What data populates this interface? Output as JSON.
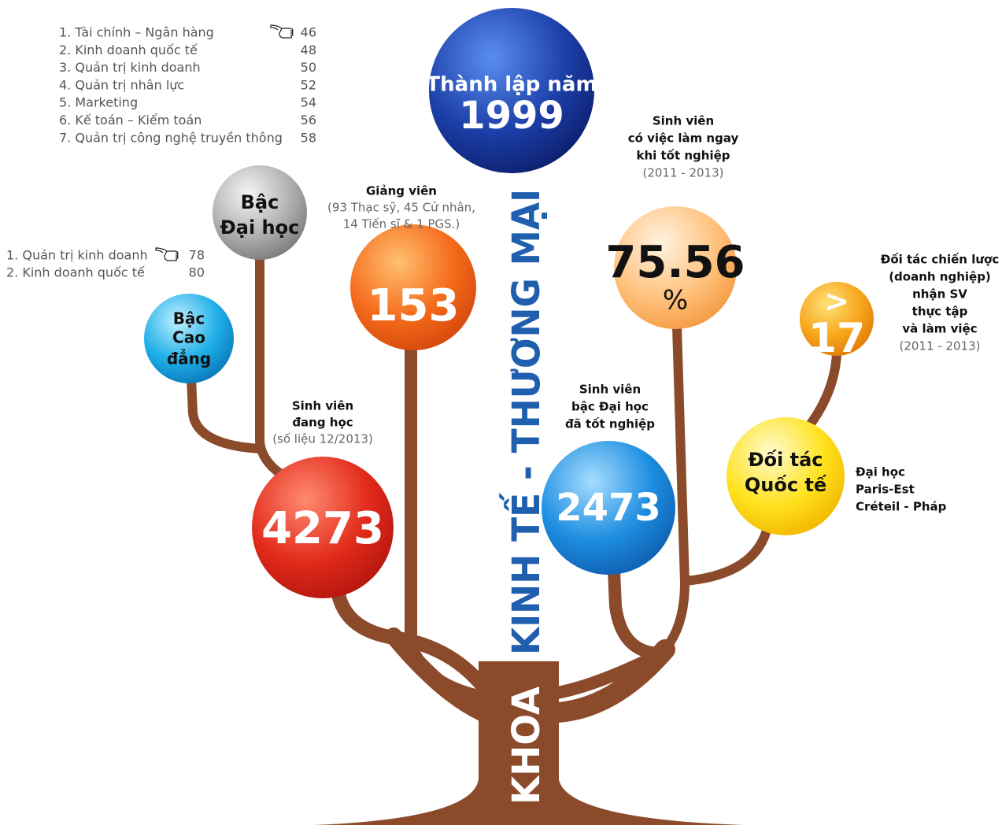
{
  "programs_main": [
    {
      "name": "1. Tài chính – Ngân hàng",
      "page": "46"
    },
    {
      "name": "2. Kinh doanh quốc tế",
      "page": "48"
    },
    {
      "name": "3. Quản trị kinh doanh",
      "page": "50"
    },
    {
      "name": "4. Quản trị nhân lực",
      "page": "52"
    },
    {
      "name": "5. Marketing",
      "page": "54"
    },
    {
      "name": "6. Kế toán – Kiểm toán",
      "page": "56"
    },
    {
      "name": "7. Quản trị công nghệ truyền thông",
      "page": "58"
    }
  ],
  "programs_college": [
    {
      "name": "1. Quản trị kinh doanh",
      "page": "78"
    },
    {
      "name": "2. Kinh doanh quốc tế",
      "page": "80"
    }
  ],
  "trunk": {
    "khoa": "KHOA",
    "name": "KINH TẾ - THƯƠNG MẠI"
  },
  "bubbles": [
    {
      "lines": [
        "Thành lập năm",
        "1999"
      ]
    },
    {
      "lines": [
        "Bậc",
        "Đại học"
      ]
    },
    {
      "lines": [
        "Bậc",
        "Cao",
        "đẳng"
      ]
    },
    {
      "lines": [
        "153"
      ]
    },
    {
      "lines": [
        "4273"
      ]
    },
    {
      "lines": [
        "2473"
      ]
    },
    {
      "lines": [
        "75.56",
        "%"
      ]
    },
    {
      "lines": [
        ">",
        "17"
      ]
    },
    {
      "lines": [
        "Đối tác",
        "Quốc tế"
      ]
    }
  ],
  "captions": [
    {
      "lines": [
        "Giảng viên"
      ],
      "note": [
        "(93 Thạc sỹ, 45 Cử nhân,",
        "14 Tiến sĩ & 1 PGS.)"
      ]
    },
    {
      "lines": [
        "Sinh viên",
        "đang học"
      ],
      "note": [
        "(số liệu 12/2013)"
      ]
    },
    {
      "lines": [
        "Sinh viên",
        "bậc Đại học",
        "đã tốt nghiệp"
      ]
    },
    {
      "lines": [
        "Sinh viên",
        "có việc làm ngay",
        "khi tốt nghiệp"
      ],
      "note": [
        "(2011 - 2013)"
      ]
    },
    {
      "lines": [
        "Đối tác chiến lược",
        "(doanh nghiệp)",
        "nhận SV",
        "thực tập",
        "và làm việc"
      ],
      "note": [
        "(2011 - 2013)"
      ]
    },
    {
      "lines": [
        "Đại học",
        "Paris-Est",
        "Créteil - Pháp"
      ]
    }
  ]
}
